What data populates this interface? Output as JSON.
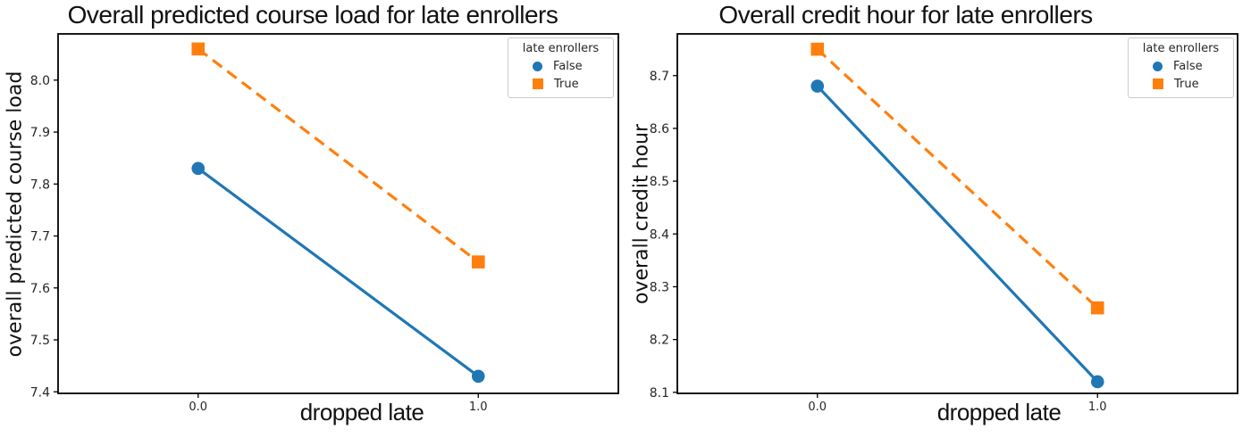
{
  "figure": {
    "background": "#ffffff",
    "text_color": "#111111",
    "axis_color": "#000000"
  },
  "chart_data": [
    {
      "type": "line",
      "title": "Overall predicted course load for late enrollers",
      "xlabel": "dropped late",
      "ylabel": "overall predicted course load",
      "x": [
        0.0,
        1.0
      ],
      "xtick_labels": [
        "0.0",
        "1.0"
      ],
      "xlim": [
        -0.5,
        1.5
      ],
      "yticks": [
        7.4,
        7.5,
        7.6,
        7.7,
        7.8,
        7.9,
        8.0
      ],
      "ytick_labels": [
        "7.4",
        "7.5",
        "7.6",
        "7.7",
        "7.8",
        "7.9",
        "8.0"
      ],
      "ylim": [
        7.397,
        8.089
      ],
      "grid": false,
      "legend": {
        "title": "late enrollers",
        "position": "upper right",
        "items": [
          "False",
          "True"
        ]
      },
      "series": [
        {
          "name": "False",
          "values": [
            7.83,
            7.43
          ],
          "color": "#1f77b4",
          "marker": "circle",
          "line_style": "solid"
        },
        {
          "name": "True",
          "values": [
            8.06,
            7.65
          ],
          "color": "#ff7f0e",
          "marker": "square",
          "line_style": "dashed"
        }
      ]
    },
    {
      "type": "line",
      "title": "Overall credit hour for late enrollers",
      "xlabel": "dropped late",
      "ylabel": "overall credit hour",
      "x": [
        0.0,
        1.0
      ],
      "xtick_labels": [
        "0.0",
        "1.0"
      ],
      "xlim": [
        -0.5,
        1.5
      ],
      "yticks": [
        8.1,
        8.2,
        8.3,
        8.4,
        8.5,
        8.6,
        8.7
      ],
      "ytick_labels": [
        "8.1",
        "8.2",
        "8.3",
        "8.4",
        "8.5",
        "8.6",
        "8.7"
      ],
      "ylim": [
        8.098,
        8.779
      ],
      "grid": false,
      "legend": {
        "title": "late enrollers",
        "position": "upper right",
        "items": [
          "False",
          "True"
        ]
      },
      "series": [
        {
          "name": "False",
          "values": [
            8.68,
            8.12
          ],
          "color": "#1f77b4",
          "marker": "circle",
          "line_style": "solid"
        },
        {
          "name": "True",
          "values": [
            8.75,
            8.26
          ],
          "color": "#ff7f0e",
          "marker": "square",
          "line_style": "dashed"
        }
      ]
    }
  ]
}
